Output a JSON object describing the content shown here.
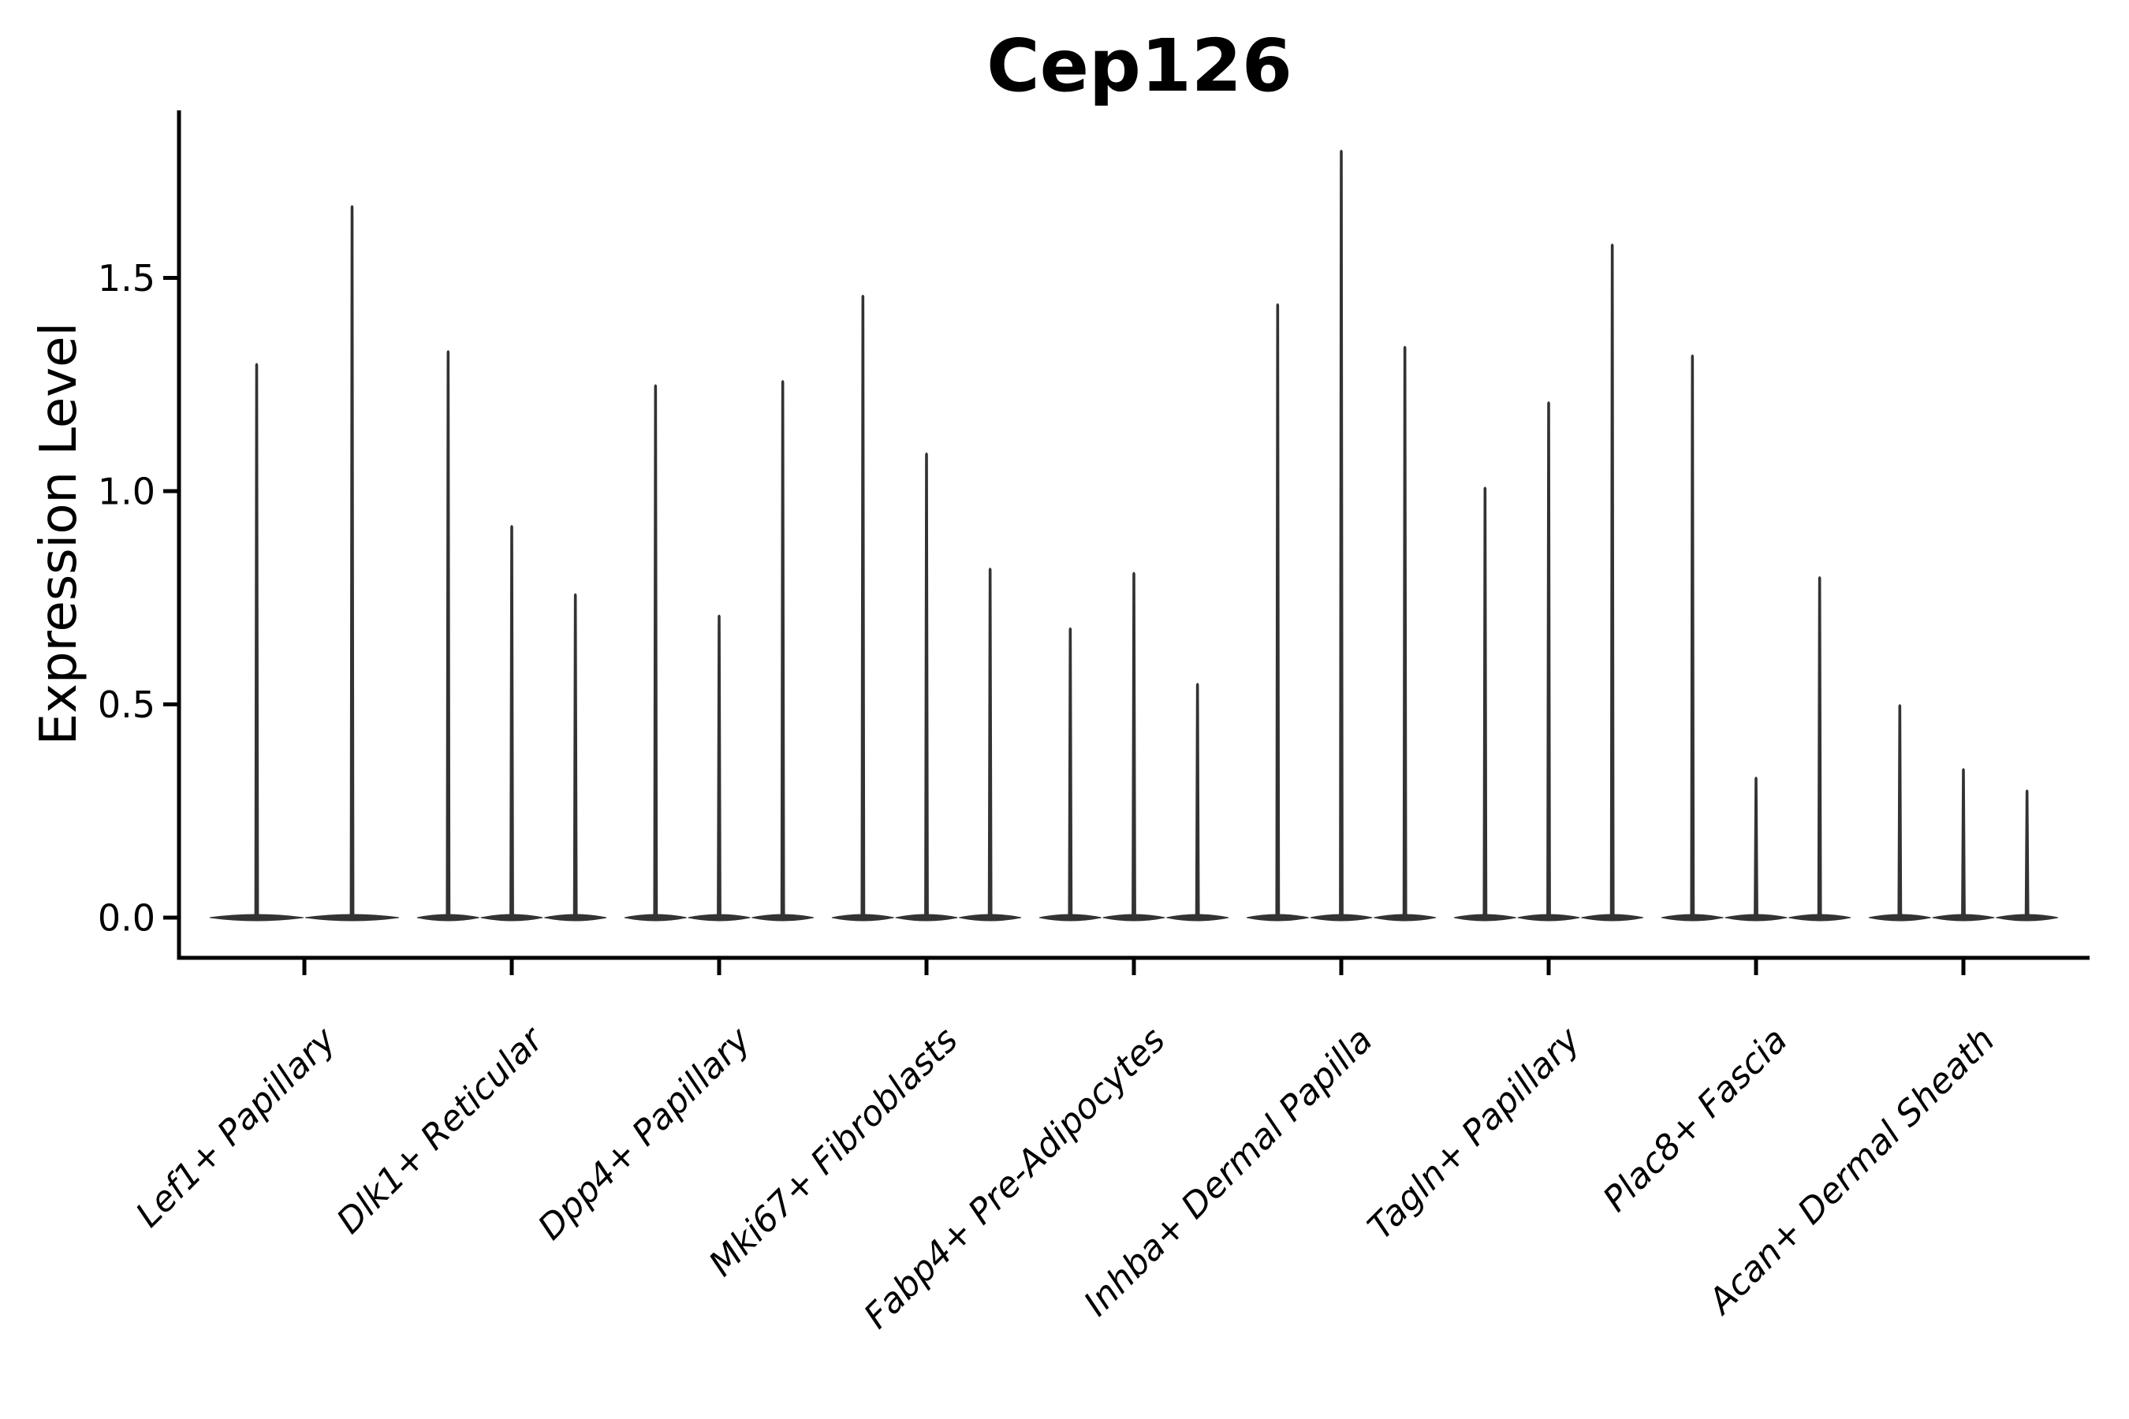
{
  "title": "Cep126",
  "ylabel": "Expression Level",
  "chart_data": {
    "type": "violin",
    "title": "Cep126",
    "xlabel": "",
    "ylabel": "Expression Level",
    "ylim": [
      -0.09,
      1.92
    ],
    "yticks": [
      "0.0",
      "0.5",
      "1.0",
      "1.5"
    ],
    "ytick_values": [
      0.0,
      0.5,
      1.0,
      1.5
    ],
    "grid": false,
    "legend_position": "none",
    "style_note": "Each violin is collapsed to a flat lens at 0 expression with a thin vertical spike reaching the maximum expression value; dark gray (#333) on white, black axis spines, italic rotated category labels.",
    "categories": [
      {
        "label": "Lef1+ Papillary",
        "violin_max": [
          1.3,
          1.67
        ]
      },
      {
        "label": "Dlk1+ Reticular",
        "violin_max": [
          1.33,
          0.92,
          0.76
        ]
      },
      {
        "label": "Dpp4+ Papillary",
        "violin_max": [
          1.25,
          0.71,
          1.26
        ]
      },
      {
        "label": "Mki67+ Fibroblasts",
        "violin_max": [
          1.46,
          1.09,
          0.82
        ]
      },
      {
        "label": "Fabp4+ Pre-Adipocytes",
        "violin_max": [
          0.68,
          0.81,
          0.55
        ]
      },
      {
        "label": "Inhba+ Dermal Papilla",
        "violin_max": [
          1.44,
          1.8,
          1.34
        ]
      },
      {
        "label": "Tagln+ Papillary",
        "violin_max": [
          1.01,
          1.21,
          1.58
        ]
      },
      {
        "label": "Plac8+ Fascia",
        "violin_max": [
          1.32,
          0.33,
          0.8
        ]
      },
      {
        "label": "Acan+ Dermal Sheath",
        "violin_max": [
          0.5,
          0.35,
          0.3
        ]
      }
    ],
    "colors": {
      "violin": "#333333",
      "axis": "#000000",
      "text": "#000000",
      "background": "#ffffff"
    }
  }
}
